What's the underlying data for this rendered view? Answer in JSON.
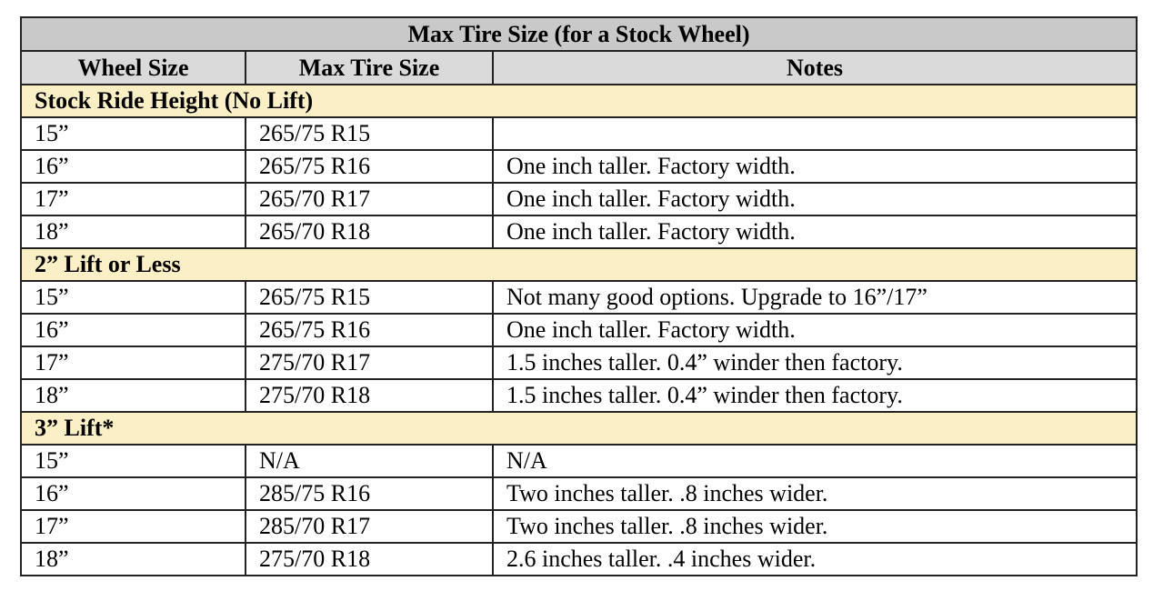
{
  "table": {
    "title": "Max Tire Size (for a Stock Wheel)",
    "columns": [
      "Wheel Size",
      "Max Tire Size",
      "Notes"
    ],
    "sections": [
      {
        "heading": "Stock Ride Height (No Lift)",
        "rows": [
          {
            "wheel": "15”",
            "tire": "265/75 R15",
            "notes": ""
          },
          {
            "wheel": "16”",
            "tire": "265/75 R16",
            "notes": "One inch taller. Factory width."
          },
          {
            "wheel": "17”",
            "tire": "265/70 R17",
            "notes": "One inch taller. Factory width."
          },
          {
            "wheel": "18”",
            "tire": "265/70 R18",
            "notes": "One inch taller. Factory width."
          }
        ]
      },
      {
        "heading": "2” Lift or Less",
        "rows": [
          {
            "wheel": "15”",
            "tire": "265/75 R15",
            "notes": "Not many good options. Upgrade to 16”/17”"
          },
          {
            "wheel": "16”",
            "tire": "265/75 R16",
            "notes": "One inch taller. Factory width."
          },
          {
            "wheel": "17”",
            "tire": "275/70 R17",
            "notes": "1.5 inches taller. 0.4” winder then factory."
          },
          {
            "wheel": "18”",
            "tire": "275/70 R18",
            "notes": "1.5 inches taller. 0.4” winder then factory."
          }
        ]
      },
      {
        "heading": "3” Lift*",
        "rows": [
          {
            "wheel": "15”",
            "tire": "N/A",
            "notes": "N/A"
          },
          {
            "wheel": "16”",
            "tire": "285/75 R16",
            "notes": "Two inches taller. .8 inches wider."
          },
          {
            "wheel": "17”",
            "tire": "285/70 R17",
            "notes": "Two inches taller. .8 inches wider."
          },
          {
            "wheel": "18”",
            "tire": "275/70 R18",
            "notes": "2.6 inches taller. .4 inches wider."
          }
        ]
      }
    ]
  },
  "colors": {
    "title_bg": "#c9c9c9",
    "header_bg": "#dadada",
    "section_bg": "#fbefc6",
    "border": "#222222"
  }
}
